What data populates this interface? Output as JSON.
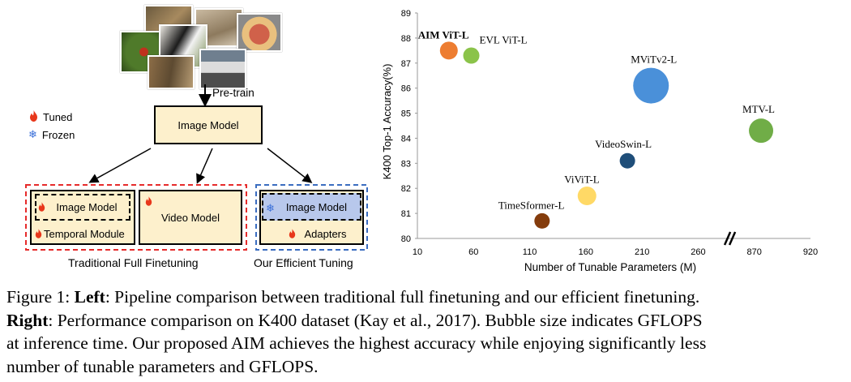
{
  "left_panel": {
    "pretrain_label": "Pre-train",
    "image_model_label": "Image Model",
    "legend": {
      "tuned": "Tuned",
      "frozen": "Frozen"
    },
    "full_finetune": {
      "image_model": "Image Model",
      "temporal_module": "Temporal Module",
      "video_model": "Video Model",
      "caption": "Traditional Full Finetuning"
    },
    "efficient": {
      "image_model": "Image Model",
      "adapters": "Adapters",
      "caption": "Our Efficient Tuning"
    },
    "colors": {
      "box_fill": "#fdf0cc",
      "frozen_fill": "#b8c8ec",
      "red_dash": "#e62b2b",
      "blue_dash": "#3b6dc0"
    },
    "icons": {
      "tuned": "flame-icon",
      "frozen": "snowflake-icon"
    }
  },
  "chart_data": {
    "type": "scatter",
    "xlabel": "Number of Tunable Parameters (M)",
    "ylabel": "K400 Top-1 Accuracy(%)",
    "x_ticks": [
      "10",
      "60",
      "110",
      "160",
      "210",
      "260",
      "870",
      "920"
    ],
    "x_axis_break": "between 260 and 870",
    "ylim": [
      80,
      89
    ],
    "y_ticks": [
      80,
      81,
      82,
      83,
      84,
      85,
      86,
      87,
      88,
      89
    ],
    "grid": false,
    "bubble_size_meaning": "GFLOPS",
    "points": [
      {
        "label": "AIM ViT-L",
        "x": 38,
        "y": 87.5,
        "color": "#ed7d31",
        "bold": true
      },
      {
        "label": "EVL ViT-L",
        "x": 58,
        "y": 87.3,
        "color": "#8bc34a",
        "bold": false
      },
      {
        "label": "MViTv2-L",
        "x": 218,
        "y": 86.1,
        "color": "#4a90d9",
        "bold": false
      },
      {
        "label": "MTV-L",
        "x": 876,
        "y": 84.3,
        "color": "#70ad47",
        "bold": false
      },
      {
        "label": "VideoSwin-L",
        "x": 197,
        "y": 83.1,
        "color": "#1f4e79",
        "bold": false
      },
      {
        "label": "ViViT-L",
        "x": 161,
        "y": 81.7,
        "color": "#ffd966",
        "bold": false
      },
      {
        "label": "TimeSformer-L",
        "x": 121,
        "y": 80.7,
        "color": "#843c0c",
        "bold": false
      }
    ]
  },
  "caption": {
    "line1_prefix": "Figure 1: ",
    "line1_bold": "Left",
    "line1_rest": ": Pipeline comparison between traditional full finetuning and our efficient finetuning.",
    "line2_bold": "Right",
    "line2_rest": ": Performance comparison on K400 dataset (Kay et al., 2017). Bubble size indicates GFLOPS",
    "line3": "at inference time. Our proposed AIM achieves the highest accuracy while enjoying significantly less",
    "line4": "number of tunable parameters and GFLOPS."
  }
}
